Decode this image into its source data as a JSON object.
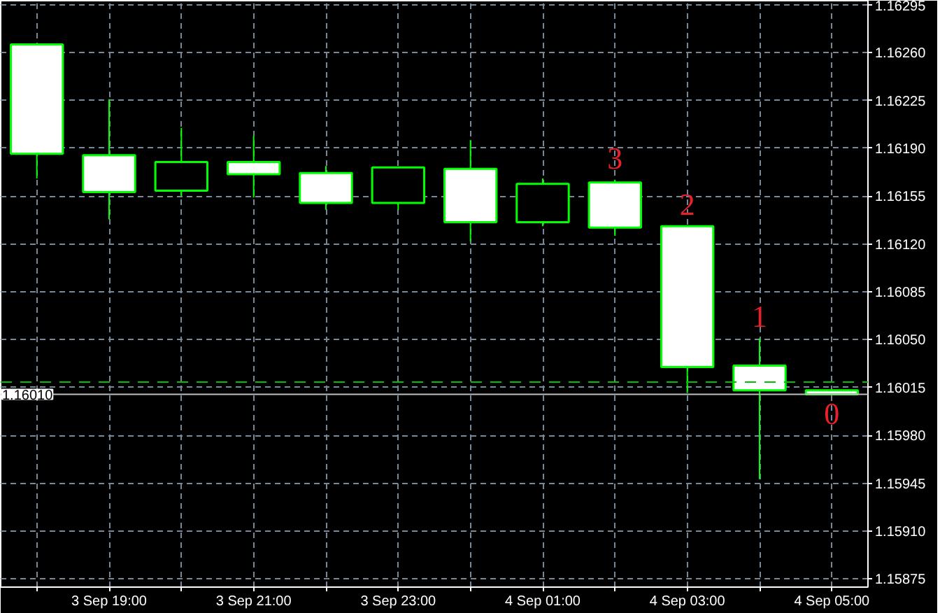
{
  "chart_data": {
    "type": "candlestick",
    "categories": [
      null,
      "3 Sep 19:00",
      null,
      "3 Sep 21:00",
      null,
      "3 Sep 23:00",
      null,
      "4 Sep 01:00",
      null,
      "4 Sep 03:00",
      null,
      "4 Sep 05:00"
    ],
    "ohlc": [
      [
        1.16266,
        1.16266,
        1.16168,
        1.16186
      ],
      [
        1.16185,
        1.16226,
        1.16138,
        1.16158
      ],
      [
        1.16159,
        1.16205,
        1.16155,
        1.1618
      ],
      [
        1.1618,
        1.16199,
        1.16154,
        1.16171
      ],
      [
        1.16172,
        1.16177,
        1.16145,
        1.1615
      ],
      [
        1.1615,
        1.16176,
        1.16145,
        1.16176
      ],
      [
        1.16175,
        1.16196,
        1.16122,
        1.16136
      ],
      [
        1.16136,
        1.16168,
        1.16133,
        1.16164
      ],
      [
        1.16165,
        1.16167,
        1.16126,
        1.16132
      ],
      [
        1.16133,
        1.16133,
        1.16011,
        1.1603
      ],
      [
        1.16031,
        1.16051,
        1.15948,
        1.16013
      ],
      [
        1.16013,
        1.16013,
        1.1601,
        1.1601
      ]
    ],
    "ylim": [
      1.15869,
      1.16298
    ],
    "yticks": [
      {
        "value": 1.15875,
        "label": "1.15875"
      },
      {
        "value": 1.1591,
        "label": "1.15910"
      },
      {
        "value": 1.15945,
        "label": "1.15945"
      },
      {
        "value": 1.1598,
        "label": "1.15980"
      },
      {
        "value": 1.16015,
        "label": "1.16015"
      },
      {
        "value": 1.1605,
        "label": "1.16050"
      },
      {
        "value": 1.16085,
        "label": "1.16085"
      },
      {
        "value": 1.1612,
        "label": "1.16120"
      },
      {
        "value": 1.16155,
        "label": "1.16155"
      },
      {
        "value": 1.1619,
        "label": "1.16190"
      },
      {
        "value": 1.16225,
        "label": "1.16225"
      },
      {
        "value": 1.1626,
        "label": "1.16260"
      },
      {
        "value": 1.16295,
        "label": "1.16295"
      }
    ],
    "grid": true,
    "ref_lines": [
      {
        "axis": "y",
        "value": 1.1601,
        "label": "1.16010",
        "color": "#c0c0c0",
        "line_style": "solid"
      },
      {
        "axis": "y",
        "value": 1.16019,
        "color": "#00c000",
        "line_style": "dashed"
      }
    ],
    "annotations": [
      "3",
      "2",
      "1",
      "0"
    ]
  }
}
